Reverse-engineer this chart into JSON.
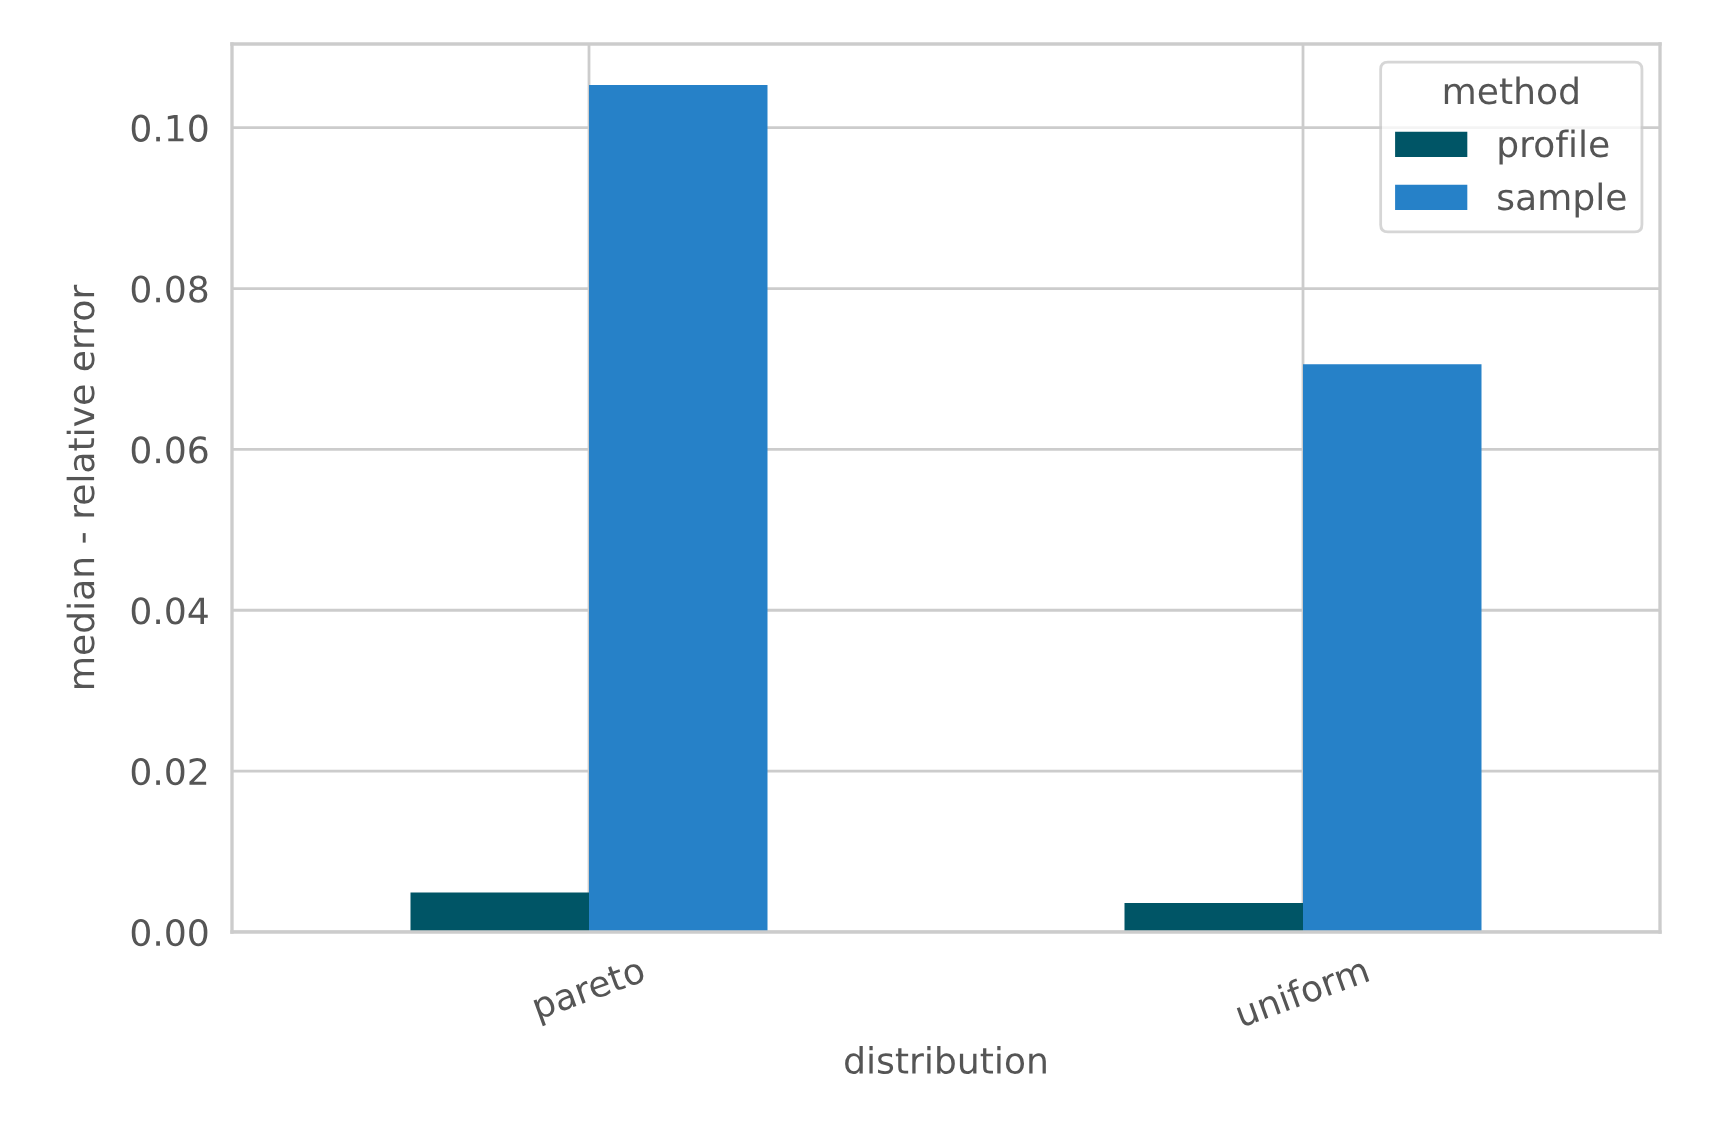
{
  "chart_data": {
    "type": "bar",
    "xlabel": "distribution",
    "ylabel": "median - relative error",
    "legend_title": "method",
    "categories": [
      "pareto",
      "uniform"
    ],
    "series": [
      {
        "name": "profile",
        "color": "#005566",
        "values": [
          0.0049,
          0.0036
        ]
      },
      {
        "name": "sample",
        "color": "#2681c8",
        "values": [
          0.1053,
          0.0706
        ]
      }
    ],
    "ylim": [
      0,
      0.1104
    ],
    "yticks": [
      {
        "value": 0,
        "label": "0.00"
      },
      {
        "value": 0.02,
        "label": "0.02"
      },
      {
        "value": 0.04,
        "label": "0.04"
      },
      {
        "value": 0.06,
        "label": "0.06"
      },
      {
        "value": 0.08,
        "label": "0.08"
      },
      {
        "value": 0.1,
        "label": "0.10"
      }
    ],
    "grid": true,
    "legend": "top right"
  }
}
